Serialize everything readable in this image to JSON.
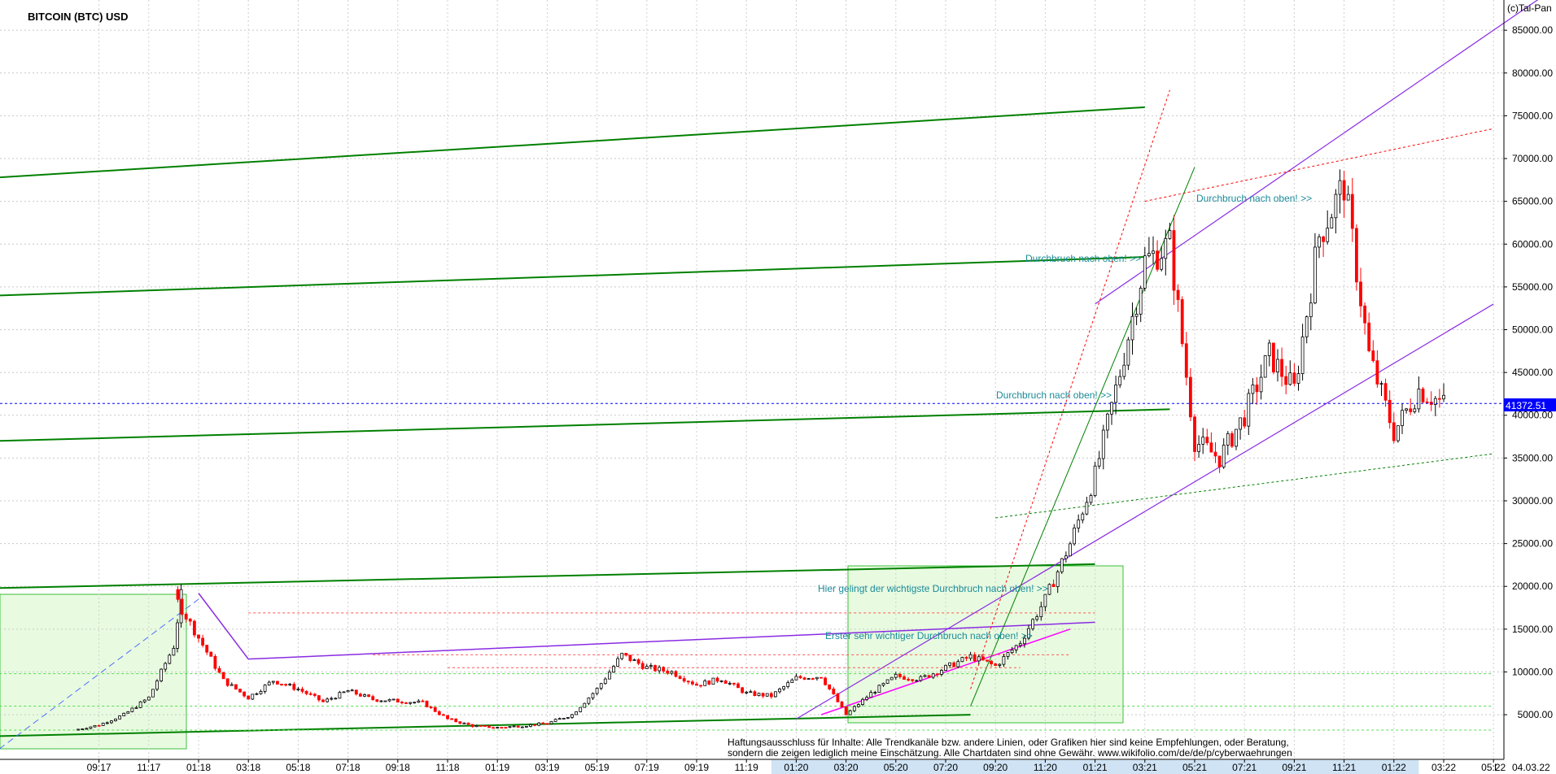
{
  "title": "BITCOIN (BTC) USD",
  "copyright": "(c)Tai-Pan",
  "last_price_label": "41372.51",
  "y_tick_labels": [
    "5000.00",
    "10000.00",
    "15000.00",
    "20000.00",
    "25000.00",
    "30000.00",
    "35000.00",
    "40000.00",
    "45000.00",
    "50000.00",
    "55000.00",
    "60000.00",
    "65000.00",
    "70000.00",
    "75000.00",
    "80000.00",
    "85000.00"
  ],
  "x_tick_labels": [
    "09:17",
    "11:17",
    "01:18",
    "03:18",
    "05:18",
    "07:18",
    "09:18",
    "11:18",
    "01:19",
    "03:19",
    "05:19",
    "07:19",
    "09:19",
    "11:19",
    "01:20",
    "03:20",
    "05:20",
    "07:20",
    "09:20",
    "11:20",
    "01:21",
    "03:21",
    "05:21",
    "07:21",
    "09:21",
    "11:21",
    "01:22",
    "03:22",
    "05:22"
  ],
  "x_axis_end_label": "04.03.22",
  "x_axis_corner": "L",
  "annotations": [
    "Durchbruch nach oben! >>",
    "Durchbruch nach oben! >>",
    "Durchbruch nach oben! >>",
    "Hier gelingt der wichtigste Durchbruch nach oben! >>",
    "Erster sehr wichtiger Durchbruch nach oben! >>"
  ],
  "disclaimer_line1": "Haftungsausschluss für Inhalte: Alle Trendkanäle bzw. andere Linien, oder Grafiken hier sind keine Empfehlungen, oder Beratung,",
  "disclaimer_line2": "sondern die zeigen lediglich meine  Einschätzung. Alle Chartdaten sind ohne Gewähr.  www.wikifolio.com/de/de/p/cyberwaehrungen",
  "colors": {
    "candle_up": "#000000",
    "candle_down": "#ff0000",
    "trend_green": "#008000",
    "trend_purple": "#8a2be2",
    "price_line": "#0000ff",
    "annotation": "#1b8b99",
    "highlight_box": "#e8fbe0"
  },
  "chart_data": {
    "type": "candlestick",
    "title": "BITCOIN (BTC) USD",
    "xlabel": "",
    "ylabel": "",
    "ylim": [
      0,
      89000
    ],
    "x_range": [
      "08.2017",
      "06.2022"
    ],
    "last_value": 41372.51,
    "last_date": "04.03.22",
    "grid": true,
    "series": [
      {
        "name": "BTC USD",
        "points": [
          [
            "08.2017",
            3200
          ],
          [
            "09.2017",
            3800
          ],
          [
            "10.2017",
            5000
          ],
          [
            "11.2017",
            7000
          ],
          [
            "12.2017",
            13000
          ],
          [
            "12.2017",
            19000
          ],
          [
            "01.2018",
            14000
          ],
          [
            "02.2018",
            9000
          ],
          [
            "03.2018",
            7000
          ],
          [
            "04.2018",
            9000
          ],
          [
            "05.2018",
            8000
          ],
          [
            "06.2018",
            6500
          ],
          [
            "07.2018",
            7800
          ],
          [
            "08.2018",
            6800
          ],
          [
            "09.2018",
            6600
          ],
          [
            "10.2018",
            6400
          ],
          [
            "11.2018",
            4500
          ],
          [
            "12.2018",
            3700
          ],
          [
            "01.2019",
            3500
          ],
          [
            "02.2019",
            3700
          ],
          [
            "03.2019",
            4000
          ],
          [
            "04.2019",
            5000
          ],
          [
            "05.2019",
            8000
          ],
          [
            "06.2019",
            12000
          ],
          [
            "07.2019",
            10500
          ],
          [
            "08.2019",
            10000
          ],
          [
            "09.2019",
            8500
          ],
          [
            "10.2019",
            9200
          ],
          [
            "11.2019",
            7500
          ],
          [
            "12.2019",
            7200
          ],
          [
            "01.2020",
            9300
          ],
          [
            "02.2020",
            9500
          ],
          [
            "03.2020",
            5000
          ],
          [
            "04.2020",
            7500
          ],
          [
            "05.2020",
            9500
          ],
          [
            "06.2020",
            9200
          ],
          [
            "07.2020",
            10500
          ],
          [
            "08.2020",
            11800
          ],
          [
            "09.2020",
            10700
          ],
          [
            "10.2020",
            13500
          ],
          [
            "11.2020",
            18500
          ],
          [
            "12.2020",
            25000
          ],
          [
            "01.2021",
            33000
          ],
          [
            "02.2021",
            45000
          ],
          [
            "03.2021",
            58000
          ],
          [
            "04.2021",
            60000
          ],
          [
            "05.2021",
            37000
          ],
          [
            "06.2021",
            35000
          ],
          [
            "07.2021",
            40000
          ],
          [
            "08.2021",
            47000
          ],
          [
            "09.2021",
            43000
          ],
          [
            "10.2021",
            61000
          ],
          [
            "11.2021",
            67000
          ],
          [
            "12.2021",
            47000
          ],
          [
            "01.2022",
            38000
          ],
          [
            "02.2022",
            43000
          ],
          [
            "03.2022",
            41372.51
          ]
        ]
      }
    ]
  }
}
